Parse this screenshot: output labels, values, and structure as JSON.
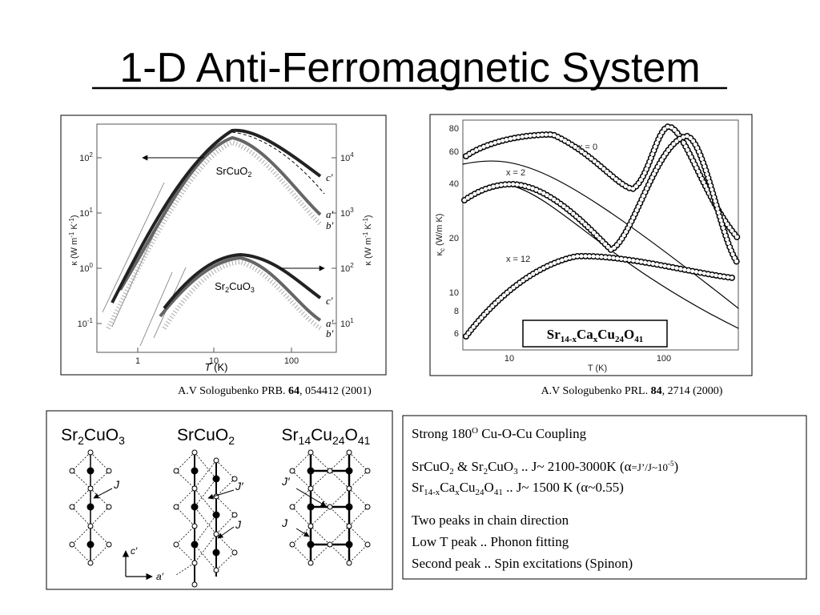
{
  "title": "1-D Anti-Ferromagnetic System",
  "figure_left": {
    "y_axis_label": [
      "κ (W m",
      "-1",
      " K",
      "-1",
      ")"
    ],
    "y_axis_label_right": [
      "κ (W m",
      "-1",
      " K",
      "-1",
      ")"
    ],
    "x_axis_label": [
      "T",
      " (K)"
    ],
    "x_ticks": [
      "1",
      "10",
      "100"
    ],
    "y_ticks_left": [
      [
        "10",
        "2"
      ],
      [
        "10",
        "1"
      ],
      [
        "10",
        "0"
      ],
      [
        "10",
        "-1"
      ]
    ],
    "y_ticks_right": [
      [
        "10",
        "4"
      ],
      [
        "10",
        "3"
      ],
      [
        "10",
        "2"
      ],
      [
        "10",
        "1"
      ]
    ],
    "compound_1": [
      "SrCuO",
      "2"
    ],
    "compound_2": [
      "Sr",
      "2",
      "CuO",
      "3"
    ],
    "curve_labels_1": [
      "c′",
      "a′",
      "b′"
    ],
    "curve_labels_2": [
      "c′",
      "a′",
      "b′"
    ],
    "caption": [
      "A.V Sologubenko PRB. ",
      "64",
      ", 054412 (2001)"
    ]
  },
  "figure_right": {
    "y_axis_label": [
      "κ",
      "c",
      " (W/m K)"
    ],
    "x_axis_label": "T (K)",
    "x_ticks": [
      "10",
      "100"
    ],
    "y_ticks": [
      "80",
      "60",
      "40",
      "20",
      "10",
      "8",
      "6"
    ],
    "series_labels": [
      "x = 0",
      "x = 2",
      "x = 12"
    ],
    "formula": [
      "Sr",
      "14-x",
      "Ca",
      "x",
      "Cu",
      "24",
      "O",
      "41"
    ],
    "caption": [
      "A.V Sologubenko PRL. ",
      "84",
      ", 2714 (2000)"
    ]
  },
  "structures": {
    "titles": [
      [
        "Sr",
        "2",
        "CuO",
        "3"
      ],
      [
        "SrCuO",
        "2"
      ],
      [
        "Sr",
        "14",
        "Cu",
        "24",
        "O",
        "41"
      ]
    ],
    "labels_1": [
      "J"
    ],
    "labels_2": [
      "J′",
      "J"
    ],
    "labels_3": [
      "J′",
      "J"
    ],
    "axes": [
      "c′",
      "a′"
    ]
  },
  "notes": {
    "line_1": [
      "Strong 180",
      "O",
      " Cu-O-Cu Coupling"
    ],
    "line_2": [
      "SrCuO",
      "2",
      " & Sr",
      "2",
      "CuO",
      "3",
      " .. J~ 2100-3000K (",
      "α",
      "=J’/J~10",
      "-5",
      ")"
    ],
    "line_3": [
      "Sr",
      "14-x",
      "Ca",
      "x",
      "Cu",
      "24",
      "O",
      "41",
      " .. J~ 1500 K (",
      "α",
      "~0.55)"
    ],
    "line_4": "Two peaks in chain direction",
    "line_5": "Low T peak .. Phonon fitting",
    "line_6": "Second peak .. Spin excitations (Spinon)"
  }
}
